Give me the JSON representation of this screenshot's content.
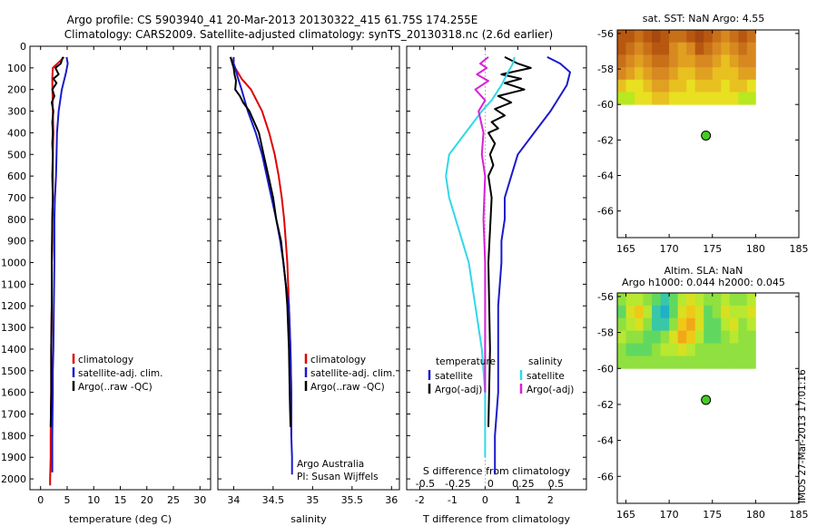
{
  "header": {
    "title_line1": "Argo profile: CS 5903940_41 20-Mar-2013 20130322_415 61.75S 174.255E",
    "title_line2": "Climatology: CARS2009. Satellite-adjusted climatology: synTS_20130318.nc (2.6d earlier)"
  },
  "colors": {
    "climatology": "#e00000",
    "satellite": "#1a1acc",
    "argo": "#000000",
    "salinity_satellite": "#30d8e8",
    "salinity_argo": "#d820d8",
    "float_marker": "#44cc22"
  },
  "depth_ticks": [
    "0",
    "100",
    "200",
    "300",
    "400",
    "500",
    "600",
    "700",
    "800",
    "900",
    "1000",
    "1100",
    "1200",
    "1300",
    "1400",
    "1500",
    "1600",
    "1700",
    "1800",
    "1900",
    "2000"
  ],
  "chart_data": [
    {
      "id": "temperature",
      "type": "line",
      "xlabel": "temperature (deg C)",
      "xlim": [
        -2,
        32
      ],
      "ylim": [
        2050,
        0
      ],
      "xticks": [
        0,
        5,
        10,
        15,
        20,
        25,
        30
      ],
      "xtick_labels": [
        "0",
        "5",
        "10",
        "15",
        "20",
        "25",
        "30"
      ],
      "legend": {
        "placement": "lower-middle",
        "items": [
          "climatology",
          "satellite-adj. clim.",
          "Argo(..raw -QC)"
        ]
      },
      "series": [
        {
          "key": "climatology",
          "x": [
            4.4,
            3.6,
            2.3,
            2.2,
            2.3,
            2.4,
            2.3,
            2.3,
            2.3,
            2.2,
            2.2,
            2.1,
            2.1,
            2.0,
            2.0,
            1.9,
            1.9,
            1.8,
            1.8
          ],
          "y": [
            50,
            70,
            100,
            150,
            300,
            400,
            500,
            600,
            700,
            800,
            900,
            1000,
            1200,
            1400,
            1600,
            1800,
            1900,
            2000,
            2030
          ]
        },
        {
          "key": "satellite",
          "x": [
            4.9,
            5.1,
            4.8,
            4.0,
            3.4,
            3.1,
            3.0,
            2.9,
            2.7,
            2.6,
            2.6,
            2.6,
            2.5,
            2.4,
            2.3,
            2.3,
            2.2,
            2.2,
            2.2,
            2.2
          ],
          "y": [
            50,
            80,
            120,
            200,
            300,
            400,
            500,
            600,
            700,
            800,
            900,
            1000,
            1200,
            1400,
            1500,
            1600,
            1800,
            1900,
            1950,
            1970
          ]
        },
        {
          "key": "argo",
          "x": [
            4.2,
            3.8,
            2.8,
            3.4,
            2.4,
            3.0,
            2.2,
            2.6,
            2.1,
            2.4,
            2.2,
            2.3,
            2.2,
            2.3,
            2.2,
            2.3,
            2.2,
            2.1,
            2.1,
            2.0,
            2.0,
            1.9
          ],
          "y": [
            50,
            80,
            100,
            130,
            150,
            170,
            200,
            230,
            260,
            300,
            350,
            400,
            450,
            500,
            600,
            700,
            800,
            1000,
            1200,
            1400,
            1600,
            1760
          ]
        }
      ]
    },
    {
      "id": "salinity",
      "type": "line",
      "xlabel": "salinity",
      "xlim": [
        33.8,
        36.1
      ],
      "ylim": [
        2050,
        0
      ],
      "xticks": [
        34,
        34.5,
        35,
        35.5,
        36
      ],
      "xtick_labels": [
        "34",
        "34.5",
        "35",
        "35.5",
        "36"
      ],
      "legend": {
        "placement": "lower-right",
        "items": [
          "climatology",
          "satellite-adj. clim.",
          "Argo(..raw -QC)"
        ]
      },
      "annotations": [
        "Argo Australia",
        "PI: Susan Wijffels"
      ],
      "series": [
        {
          "key": "climatology",
          "x": [
            33.96,
            34.02,
            34.1,
            34.22,
            34.36,
            34.45,
            34.52,
            34.57,
            34.61,
            34.64,
            34.66,
            34.68,
            34.69,
            34.7,
            34.72,
            34.73,
            34.73
          ],
          "y": [
            50,
            100,
            150,
            200,
            300,
            400,
            500,
            600,
            700,
            800,
            900,
            1000,
            1100,
            1200,
            1400,
            1600,
            1800
          ]
        },
        {
          "key": "satellite",
          "x": [
            34.0,
            34.0,
            34.02,
            34.04,
            34.1,
            34.18,
            34.28,
            34.36,
            34.42,
            34.48,
            34.54,
            34.59,
            34.63,
            34.66,
            34.7,
            34.72,
            34.73,
            34.73,
            34.74,
            34.74
          ],
          "y": [
            50,
            80,
            100,
            130,
            200,
            300,
            400,
            500,
            600,
            700,
            800,
            900,
            1000,
            1100,
            1200,
            1400,
            1600,
            1800,
            1900,
            1980
          ]
        },
        {
          "key": "argo",
          "x": [
            33.96,
            34.0,
            34.01,
            34.03,
            34.02,
            34.08,
            34.12,
            34.2,
            34.32,
            34.38,
            34.44,
            34.5,
            34.54,
            34.6,
            34.63,
            34.66,
            34.68,
            34.7,
            34.71,
            34.72
          ],
          "y": [
            50,
            100,
            130,
            160,
            200,
            230,
            260,
            300,
            400,
            500,
            600,
            700,
            800,
            900,
            1000,
            1100,
            1200,
            1400,
            1600,
            1760
          ]
        }
      ]
    },
    {
      "id": "difference",
      "type": "line",
      "xlabel": "T difference from climatology",
      "x2label": "S difference from climatology",
      "xlim": [
        -2.4,
        3.1
      ],
      "ylim": [
        2050,
        0
      ],
      "xticks": [
        -2,
        -1,
        0,
        1,
        2
      ],
      "xtick_labels": [
        "-2",
        "-1",
        "0",
        "1",
        "2"
      ],
      "x2ticks_pos": [
        -2,
        -1,
        0,
        1,
        2
      ],
      "x2tick_labels": [
        "-0.5",
        "-0.25",
        "0",
        "0.25",
        "0.5"
      ],
      "legend": {
        "placement": "lower-middle",
        "temperature_header": "temperature",
        "salinity_header": "salinity",
        "items": [
          "satellite",
          "Argo(-adj)",
          "satellite",
          "Argo(-adj)"
        ]
      },
      "series": [
        {
          "key": "t_satellite",
          "x": [
            1.9,
            2.3,
            2.6,
            2.5,
            2.0,
            1.5,
            1.0,
            0.8,
            0.6,
            0.6,
            0.5,
            0.5,
            0.4,
            0.4,
            0.4,
            0.3,
            0.3,
            0.3
          ],
          "y": [
            50,
            80,
            120,
            180,
            300,
            400,
            500,
            600,
            700,
            800,
            900,
            1000,
            1200,
            1400,
            1600,
            1800,
            1900,
            1980
          ]
        },
        {
          "key": "t_argo",
          "x": [
            0.6,
            1.0,
            1.4,
            0.5,
            1.1,
            0.6,
            1.2,
            0.4,
            0.8,
            0.3,
            0.6,
            0.2,
            0.4,
            0.1,
            0.3,
            0.15,
            0.25,
            0.1,
            0.2,
            0.1,
            0.15,
            0.1
          ],
          "y": [
            50,
            80,
            100,
            130,
            150,
            170,
            200,
            230,
            260,
            290,
            320,
            350,
            380,
            400,
            450,
            500,
            550,
            600,
            700,
            1000,
            1400,
            1760
          ]
        },
        {
          "key": "s_satellite",
          "x": [
            0.9,
            0.85,
            0.7,
            0.5,
            0.2,
            -0.1,
            -0.6,
            -1.1,
            -1.2,
            -1.1,
            -0.9,
            -0.7,
            -0.5,
            -0.3,
            -0.1,
            0.0,
            0.0
          ],
          "y": [
            50,
            80,
            120,
            180,
            250,
            300,
            400,
            500,
            600,
            700,
            800,
            900,
            1000,
            1200,
            1400,
            1600,
            1900
          ]
        },
        {
          "key": "s_argo",
          "x": [
            0.1,
            -0.15,
            0.05,
            -0.25,
            0.1,
            -0.3,
            0.0,
            -0.2,
            -0.05,
            -0.1,
            0.0,
            -0.05,
            0.0,
            0.0
          ],
          "y": [
            50,
            80,
            100,
            130,
            160,
            200,
            250,
            300,
            400,
            500,
            600,
            800,
            1000,
            1600
          ]
        }
      ]
    },
    {
      "id": "sst_map",
      "type": "heatmap",
      "title": "sat. SST: NaN Argo: 4.55",
      "xlim": [
        164,
        185
      ],
      "ylim": [
        -67.5,
        -55.8
      ],
      "xticks": [
        165,
        170,
        175,
        180,
        185
      ],
      "yticks": [
        -56,
        -58,
        -60,
        -62,
        -64,
        -66
      ],
      "xtick_labels": [
        "165",
        "170",
        "175",
        "180",
        "185"
      ],
      "ytick_labels": [
        "-56",
        "-58",
        "-60",
        "-62",
        "-64",
        "-66"
      ],
      "data_extent": {
        "lon": [
          164,
          180
        ],
        "lat": [
          -60,
          -55.8
        ]
      },
      "grid_cols": 16,
      "values": [
        [
          8,
          8,
          7,
          8,
          9,
          8,
          7,
          7,
          8,
          9,
          8,
          7,
          6,
          7,
          8,
          7
        ],
        [
          8,
          7,
          6,
          7,
          8,
          8,
          6,
          5,
          6,
          8,
          7,
          6,
          5,
          6,
          7,
          6
        ],
        [
          7,
          6,
          5,
          6,
          7,
          7,
          6,
          5,
          5,
          6,
          6,
          5,
          4,
          5,
          6,
          6
        ],
        [
          6,
          5,
          4,
          5,
          6,
          6,
          5,
          4,
          4,
          5,
          5,
          4,
          4,
          4,
          5,
          5
        ],
        [
          4,
          3,
          3,
          4,
          5,
          5,
          4,
          4,
          3,
          4,
          4,
          4,
          3,
          4,
          4,
          3
        ],
        [
          2,
          2,
          3,
          3,
          4,
          4,
          3,
          3,
          3,
          3,
          3,
          3,
          3,
          3,
          2,
          2
        ]
      ],
      "float_position": {
        "lon": 174.255,
        "lat": -61.75
      }
    },
    {
      "id": "sla_map",
      "type": "heatmap",
      "title": "Altim. SLA: NaN",
      "subtitle": "Argo h1000: 0.044 h2000: 0.045",
      "xlim": [
        164,
        185
      ],
      "ylim": [
        -67.5,
        -55.8
      ],
      "xticks": [
        165,
        170,
        175,
        180,
        185
      ],
      "yticks": [
        -56,
        -58,
        -60,
        -62,
        -64,
        -66
      ],
      "xtick_labels": [
        "165",
        "170",
        "175",
        "180",
        "185"
      ],
      "ytick_labels": [
        "-56",
        "-58",
        "-60",
        "-62",
        "-64",
        "-66"
      ],
      "data_extent": {
        "lon": [
          164,
          180
        ],
        "lat": [
          -60,
          -55.8
        ]
      },
      "grid_cols": 16,
      "values": [
        [
          3,
          4,
          4,
          3,
          2,
          1,
          2,
          4,
          5,
          4,
          3,
          3,
          4,
          3,
          3,
          4
        ],
        [
          2,
          5,
          6,
          4,
          1,
          0,
          2,
          5,
          6,
          5,
          2,
          3,
          5,
          4,
          4,
          5
        ],
        [
          3,
          4,
          5,
          3,
          1,
          1,
          3,
          6,
          7,
          5,
          2,
          2,
          4,
          5,
          3,
          4
        ],
        [
          4,
          3,
          3,
          2,
          2,
          3,
          5,
          7,
          6,
          4,
          2,
          2,
          3,
          4,
          3,
          3
        ],
        [
          3,
          2,
          2,
          2,
          3,
          4,
          4,
          5,
          4,
          3,
          3,
          3,
          3,
          3,
          3,
          3
        ],
        [
          3,
          3,
          3,
          3,
          3,
          3,
          3,
          3,
          3,
          3,
          3,
          3,
          3,
          3,
          3,
          3
        ]
      ],
      "float_position": {
        "lon": 174.255,
        "lat": -61.75
      }
    }
  ],
  "watermark": "IMOS 27-Mar-2013 17:01:16"
}
